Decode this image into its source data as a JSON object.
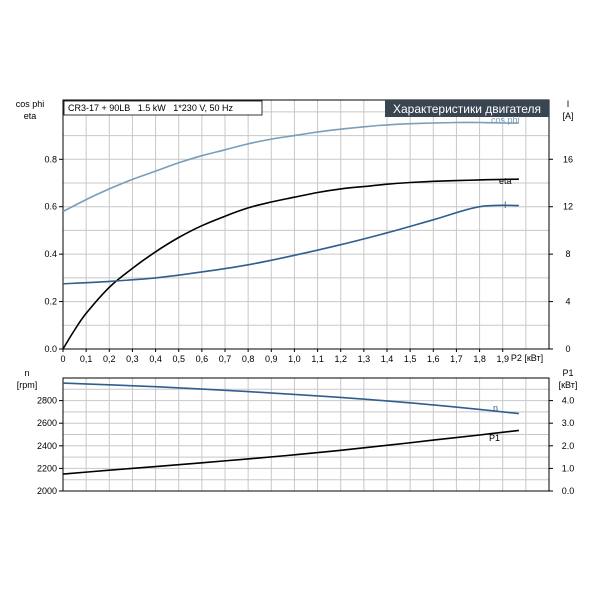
{
  "chart_data": [
    {
      "type": "line",
      "title": "Характеристики двигателя",
      "subtitle": "CR3-17 + 90LB   1.5 kW   1*230 V, 50 Hz",
      "x_label": "P2 [кВт]",
      "x_range": [
        0,
        2.1
      ],
      "x_ticks": [
        "0",
        "0,1",
        "0,2",
        "0,3",
        "0,4",
        "0,5",
        "0,6",
        "0,7",
        "0,8",
        "0,9",
        "1,0",
        "1,1",
        "1,2",
        "1,3",
        "1,4",
        "1,5",
        "1,6",
        "1,7",
        "1,8",
        "1,9"
      ],
      "left_axis": {
        "label_line1": "cos phi",
        "label_line2": "eta",
        "range": [
          0,
          1.05
        ],
        "ticks": [
          "0.0",
          "0.2",
          "0.4",
          "0.6",
          "0.8"
        ]
      },
      "right_axis": {
        "label_line1": "I",
        "label_line2": "[A]",
        "range": [
          0,
          21
        ],
        "ticks": [
          "0",
          "4",
          "8",
          "12",
          "16"
        ]
      },
      "grid": true,
      "series": [
        {
          "name": "cos phi",
          "axis": "left",
          "color": "#7a9db8",
          "x": [
            0,
            0.1,
            0.2,
            0.3,
            0.4,
            0.5,
            0.6,
            0.7,
            0.8,
            0.9,
            1.0,
            1.1,
            1.2,
            1.3,
            1.4,
            1.5,
            1.6,
            1.7,
            1.8,
            1.9,
            1.97
          ],
          "y": [
            0.58,
            0.63,
            0.675,
            0.715,
            0.75,
            0.785,
            0.815,
            0.84,
            0.865,
            0.885,
            0.9,
            0.915,
            0.927,
            0.937,
            0.945,
            0.95,
            0.953,
            0.955,
            0.955,
            0.953,
            0.953
          ]
        },
        {
          "name": "eta",
          "axis": "left",
          "color": "#000000",
          "x": [
            0,
            0.05,
            0.1,
            0.2,
            0.3,
            0.4,
            0.5,
            0.6,
            0.7,
            0.8,
            0.9,
            1.0,
            1.1,
            1.2,
            1.3,
            1.4,
            1.5,
            1.6,
            1.7,
            1.8,
            1.9,
            1.97
          ],
          "y": [
            0,
            0.08,
            0.15,
            0.26,
            0.34,
            0.41,
            0.47,
            0.52,
            0.56,
            0.595,
            0.62,
            0.64,
            0.66,
            0.675,
            0.685,
            0.695,
            0.702,
            0.707,
            0.71,
            0.713,
            0.715,
            0.716
          ]
        },
        {
          "name": "I",
          "axis": "right",
          "color": "#2f5f8e",
          "x": [
            0,
            0.2,
            0.4,
            0.6,
            0.8,
            1.0,
            1.2,
            1.4,
            1.6,
            1.8,
            1.97
          ],
          "y": [
            5.5,
            5.7,
            6.0,
            6.5,
            7.1,
            7.9,
            8.8,
            9.8,
            10.9,
            12.0,
            12.1
          ]
        }
      ]
    },
    {
      "type": "line",
      "x_label": "",
      "x_range": [
        0,
        2.1
      ],
      "left_axis": {
        "label_line1": "n",
        "label_line2": "[rpm]",
        "range": [
          2000,
          3000
        ],
        "ticks": [
          "2000",
          "2200",
          "2400",
          "2600",
          "2800"
        ]
      },
      "right_axis": {
        "label_line1": "P1",
        "label_line2": "[кВт]",
        "range": [
          0,
          5
        ],
        "ticks": [
          "0.0",
          "1.0",
          "2.0",
          "3.0",
          "4.0"
        ]
      },
      "grid": true,
      "series": [
        {
          "name": "n",
          "axis": "left",
          "color": "#2f5f8e",
          "x": [
            0,
            0.2,
            0.4,
            0.6,
            0.8,
            1.0,
            1.2,
            1.4,
            1.6,
            1.8,
            1.97
          ],
          "y": [
            2955,
            2940,
            2923,
            2902,
            2880,
            2855,
            2828,
            2797,
            2762,
            2722,
            2685
          ]
        },
        {
          "name": "P1",
          "axis": "right",
          "color": "#000000",
          "x": [
            0,
            0.2,
            0.4,
            0.6,
            0.8,
            1.0,
            1.2,
            1.4,
            1.6,
            1.8,
            1.97
          ],
          "y": [
            0.75,
            0.92,
            1.08,
            1.25,
            1.42,
            1.6,
            1.8,
            2.02,
            2.25,
            2.48,
            2.68
          ]
        }
      ]
    }
  ]
}
